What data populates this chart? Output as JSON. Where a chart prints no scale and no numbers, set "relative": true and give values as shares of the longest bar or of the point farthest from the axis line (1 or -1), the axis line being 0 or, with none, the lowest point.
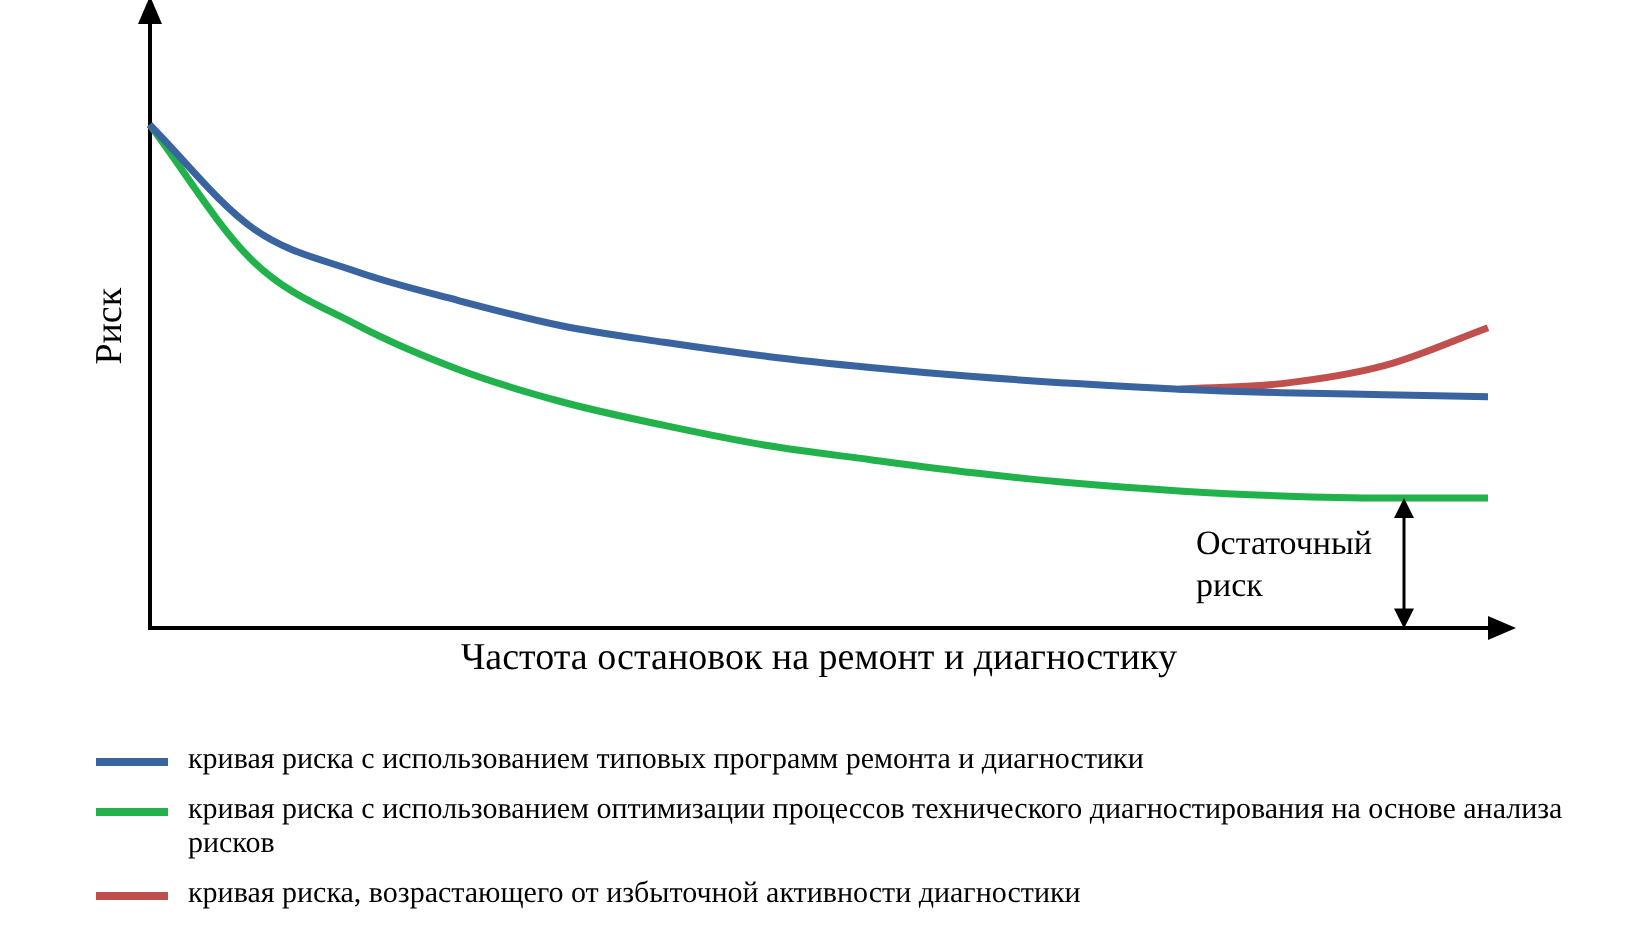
{
  "chart_data": {
    "type": "line",
    "relative": true,
    "xlabel": "Частота остановок на ремонт и диагностику",
    "ylabel": "Риск",
    "categories": [
      null,
      null,
      null,
      null,
      null,
      null,
      null,
      null,
      null,
      null,
      null,
      null,
      null,
      null
    ],
    "series": [
      {
        "name": "кривая риска с использованием типовых программ ремонта и диагностики",
        "color": "#3a64a0",
        "values": [
          1.0,
          0.795,
          0.709,
          0.651,
          0.601,
          0.568,
          0.54,
          0.518,
          0.5,
          0.486,
          0.475,
          0.468,
          0.464,
          0.46
        ]
      },
      {
        "name": "кривая риска с использованием оптимизации процессов технического диагностирования на основе анализа рисков",
        "color": "#22b24c",
        "values": [
          1.0,
          0.73,
          0.604,
          0.514,
          0.45,
          0.403,
          0.363,
          0.335,
          0.309,
          0.288,
          0.273,
          0.263,
          0.259,
          0.259
        ]
      },
      {
        "name": "кривая риска, возрастающего от избыточной активности диагностики",
        "color": "#c0504d",
        "values": [
          null,
          null,
          null,
          null,
          null,
          null,
          null,
          null,
          null,
          null,
          0.475,
          0.486,
          0.522,
          0.597
        ]
      }
    ],
    "annotations": [
      {
        "text": "Остаточный риск",
        "y": 0.259
      }
    ],
    "legend": "bottom",
    "tick_labels": false,
    "grid": false,
    "marker": "none",
    "line_style": "solid"
  }
}
